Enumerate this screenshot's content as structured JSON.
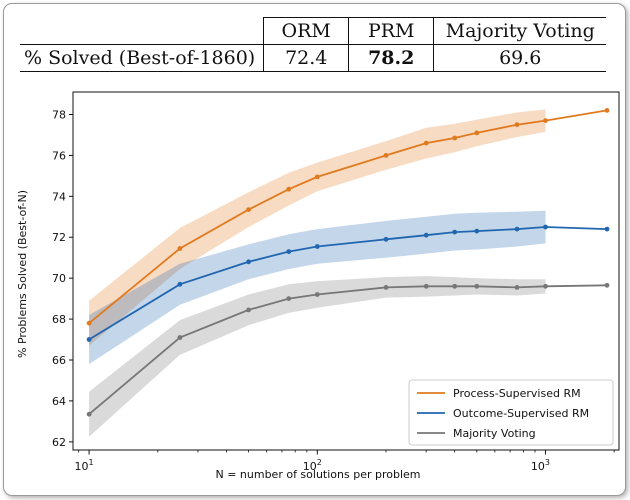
{
  "table": {
    "headers": [
      "",
      "ORM",
      "PRM",
      "Majority Voting"
    ],
    "row_label": "% Solved (Best-of-1860)",
    "values": [
      "72.4",
      "78.2",
      "69.6"
    ],
    "best_column": 2
  },
  "chart_data": {
    "type": "line",
    "xlabel": "N = number of solutions per problem",
    "ylabel": "% Problems Solved (Best-of-N)",
    "xscale": "log",
    "xlim": [
      8.5,
      2100
    ],
    "ylim": [
      61.6,
      79.1
    ],
    "xticks": [
      {
        "value": 10,
        "base": "10",
        "exp": "1"
      },
      {
        "value": 100,
        "base": "10",
        "exp": "2"
      },
      {
        "value": 1000,
        "base": "10",
        "exp": "3"
      }
    ],
    "yticks": [
      62,
      64,
      66,
      68,
      70,
      72,
      74,
      76,
      78
    ],
    "grid": false,
    "legend": "bottom-right",
    "series": [
      {
        "name": "Process-Supervised RM",
        "color": "#e07a1f",
        "x": [
          10,
          25,
          50,
          75,
          100,
          200,
          300,
          400,
          500,
          750,
          1000,
          1860
        ],
        "y": [
          67.8,
          71.45,
          73.35,
          74.35,
          74.95,
          76.0,
          76.6,
          76.85,
          77.1,
          77.5,
          77.7,
          78.2
        ],
        "band_upper": [
          68.9,
          72.45,
          74.2,
          75.15,
          75.65,
          76.7,
          77.35,
          77.55,
          77.75,
          78.1,
          78.25
        ],
        "band_lower": [
          66.7,
          70.45,
          72.5,
          73.55,
          74.25,
          75.3,
          75.85,
          76.15,
          76.45,
          76.9,
          77.15
        ]
      },
      {
        "name": "Outcome-Supervised RM",
        "color": "#2166b0",
        "x": [
          10,
          25,
          50,
          75,
          100,
          200,
          300,
          400,
          500,
          750,
          1000,
          1860
        ],
        "y": [
          67.0,
          69.7,
          70.8,
          71.3,
          71.55,
          71.9,
          72.1,
          72.25,
          72.3,
          72.4,
          72.5,
          72.4
        ],
        "band_upper": [
          68.2,
          70.7,
          71.65,
          72.15,
          72.4,
          72.8,
          73.0,
          73.15,
          73.2,
          73.25,
          73.3
        ],
        "band_lower": [
          65.8,
          68.7,
          69.95,
          70.45,
          70.7,
          71.0,
          71.2,
          71.35,
          71.4,
          71.55,
          71.7
        ]
      },
      {
        "name": "Majority Voting",
        "color": "#777777",
        "x": [
          10,
          25,
          50,
          75,
          100,
          200,
          300,
          400,
          500,
          750,
          1000,
          1860
        ],
        "y": [
          63.35,
          67.1,
          68.45,
          69.0,
          69.2,
          69.55,
          69.6,
          69.6,
          69.6,
          69.55,
          69.6,
          69.65
        ],
        "band_upper": [
          64.45,
          67.95,
          69.2,
          69.7,
          69.85,
          70.05,
          70.1,
          70.05,
          70.0,
          69.95,
          69.95
        ],
        "band_lower": [
          62.25,
          66.25,
          67.7,
          68.3,
          68.55,
          69.05,
          69.1,
          69.15,
          69.2,
          69.15,
          69.25
        ]
      }
    ]
  }
}
